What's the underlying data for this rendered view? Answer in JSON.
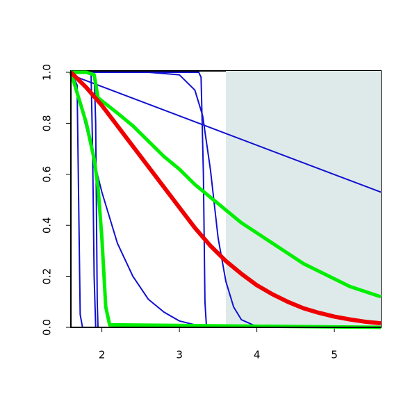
{
  "chart_data": {
    "type": "line",
    "xlim": [
      1.6,
      5.6
    ],
    "ylim": [
      0,
      1
    ],
    "xticks": [
      2,
      3,
      4,
      5
    ],
    "yticks": [
      {
        "value": 0,
        "label": "0.0"
      },
      0.2,
      0.4,
      0.6,
      0.8,
      {
        "value": 1,
        "label": "1.0"
      }
    ],
    "shaded_region": {
      "x": [
        3.6,
        5.6
      ],
      "color": "#deeaea"
    },
    "series": [
      {
        "color": "#1010d0",
        "line_width": 2,
        "x": [
          1.6,
          5.6
        ],
        "values": [
          0.99,
          0.53
        ]
      },
      {
        "color": "#1010d0",
        "line_width": 2,
        "x": [
          1.6,
          1.68,
          1.7,
          1.72,
          1.75,
          5.6
        ],
        "values": [
          1,
          0.95,
          0.5,
          0.05,
          0,
          0
        ]
      },
      {
        "color": "#1010d0",
        "line_width": 2,
        "x": [
          1.6,
          1.86,
          1.88,
          1.9,
          1.92,
          5.6
        ],
        "values": [
          1,
          1,
          0.7,
          0.2,
          0,
          0
        ]
      },
      {
        "color": "#1010d0",
        "line_width": 2,
        "x": [
          1.6,
          1.9,
          1.92,
          1.94,
          1.95,
          5.6
        ],
        "values": [
          1,
          1,
          0.8,
          0.1,
          0,
          0
        ]
      },
      {
        "color": "#1010d0",
        "line_width": 2,
        "x": [
          1.6,
          3.25,
          3.28,
          3.31,
          3.33,
          3.35,
          5.6
        ],
        "values": [
          1,
          1,
          0.98,
          0.6,
          0.1,
          0,
          0
        ]
      },
      {
        "color": "#1010d0",
        "line_width": 2,
        "x": [
          1.6,
          2.6,
          3.0,
          3.2,
          3.3,
          3.4,
          3.5,
          3.6,
          3.7,
          3.8,
          4.0,
          5.6
        ],
        "values": [
          1,
          1,
          0.99,
          0.93,
          0.83,
          0.62,
          0.35,
          0.18,
          0.08,
          0.03,
          0.003,
          0
        ]
      },
      {
        "color": "#1010d0",
        "line_width": 2,
        "x": [
          1.6,
          1.7,
          1.8,
          1.9,
          2.0,
          2.2,
          2.4,
          2.6,
          2.8,
          3.0,
          3.2,
          3.6,
          5.6
        ],
        "values": [
          1,
          0.9,
          0.78,
          0.65,
          0.53,
          0.33,
          0.2,
          0.11,
          0.06,
          0.025,
          0.01,
          0,
          0
        ]
      },
      {
        "color": "#00ee00",
        "line_width": 5,
        "x": [
          1.6,
          1.7,
          1.8,
          1.9,
          1.95,
          2.0,
          2.05,
          2.1,
          5.6
        ],
        "values": [
          1,
          0.9,
          0.8,
          0.66,
          0.55,
          0.35,
          0.08,
          0.01,
          0
        ]
      },
      {
        "color": "#00ee00",
        "line_width": 5,
        "x": [
          1.6,
          1.8,
          1.9,
          1.95,
          2.2,
          2.4,
          2.6,
          2.8,
          3.0,
          3.2,
          3.4,
          3.6,
          3.8,
          4.0,
          4.2,
          4.4,
          4.6,
          4.8,
          5.0,
          5.2,
          5.4,
          5.6
        ],
        "values": [
          1,
          1,
          0.99,
          0.9,
          0.84,
          0.79,
          0.73,
          0.67,
          0.62,
          0.56,
          0.51,
          0.46,
          0.41,
          0.37,
          0.33,
          0.29,
          0.25,
          0.22,
          0.19,
          0.16,
          0.14,
          0.12
        ]
      },
      {
        "color": "#ee0000",
        "line_width": 6,
        "x": [
          1.6,
          1.8,
          2.0,
          2.2,
          2.4,
          2.6,
          2.8,
          3.0,
          3.2,
          3.4,
          3.6,
          3.8,
          4.0,
          4.2,
          4.4,
          4.6,
          4.8,
          5.0,
          5.2,
          5.4,
          5.6
        ],
        "values": [
          1,
          0.94,
          0.87,
          0.79,
          0.71,
          0.63,
          0.55,
          0.47,
          0.39,
          0.32,
          0.26,
          0.21,
          0.165,
          0.13,
          0.1,
          0.075,
          0.057,
          0.042,
          0.031,
          0.022,
          0.016
        ]
      }
    ]
  }
}
